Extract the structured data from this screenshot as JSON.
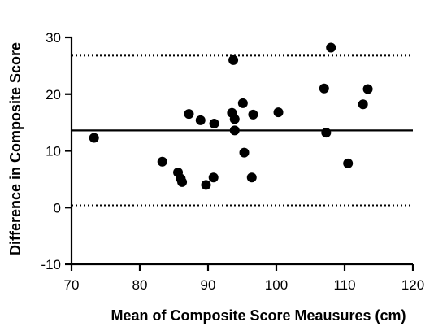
{
  "chart_data": {
    "type": "scatter",
    "xlabel": "Mean of Composite Score Meausures (cm)",
    "ylabel": "Difference in Composite Score",
    "xlim": [
      70,
      120
    ],
    "ylim": [
      -10,
      30
    ],
    "x_ticks": [
      70,
      80,
      90,
      100,
      110,
      120
    ],
    "y_ticks": [
      -10,
      0,
      10,
      20,
      30
    ],
    "grid": false,
    "legend": "none",
    "reference_lines": [
      {
        "kind": "mean",
        "value": 13.6,
        "style": "solid"
      },
      {
        "kind": "upper-limit",
        "value": 26.8,
        "style": "dotted"
      },
      {
        "kind": "lower-limit",
        "value": 0.4,
        "style": "dotted"
      }
    ],
    "points": [
      {
        "x": 73.3,
        "y": 12.3
      },
      {
        "x": 83.3,
        "y": 8.1
      },
      {
        "x": 85.6,
        "y": 6.2
      },
      {
        "x": 86.0,
        "y": 5.1
      },
      {
        "x": 86.2,
        "y": 4.5
      },
      {
        "x": 87.2,
        "y": 16.5
      },
      {
        "x": 88.9,
        "y": 15.4
      },
      {
        "x": 89.7,
        "y": 4.0
      },
      {
        "x": 90.8,
        "y": 5.3
      },
      {
        "x": 90.9,
        "y": 14.8
      },
      {
        "x": 93.5,
        "y": 16.7
      },
      {
        "x": 93.7,
        "y": 26.0
      },
      {
        "x": 93.9,
        "y": 15.6
      },
      {
        "x": 93.9,
        "y": 13.6
      },
      {
        "x": 95.1,
        "y": 18.4
      },
      {
        "x": 95.3,
        "y": 9.7
      },
      {
        "x": 96.4,
        "y": 5.3
      },
      {
        "x": 96.6,
        "y": 16.4
      },
      {
        "x": 100.3,
        "y": 16.8
      },
      {
        "x": 107.0,
        "y": 21.0
      },
      {
        "x": 107.3,
        "y": 13.2
      },
      {
        "x": 108.0,
        "y": 28.2
      },
      {
        "x": 110.5,
        "y": 7.8
      },
      {
        "x": 112.7,
        "y": 18.2
      },
      {
        "x": 113.4,
        "y": 20.9
      }
    ],
    "colors": {
      "points": "#000000",
      "axes": "#000000",
      "lines": "#000000"
    }
  }
}
